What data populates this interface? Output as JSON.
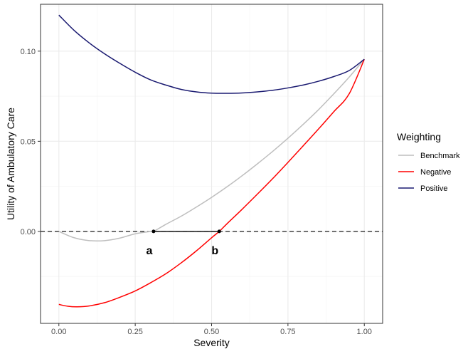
{
  "chart_data": {
    "type": "line",
    "title": "",
    "xlabel": "Severity",
    "ylabel": "Utility of Ambulatory Care",
    "xlim": [
      -0.06,
      1.06
    ],
    "ylim": [
      -0.051,
      0.126
    ],
    "xticks": [
      0.0,
      0.25,
      0.5,
      0.75,
      1.0
    ],
    "xtick_labels": [
      "0.00",
      "0.25",
      "0.50",
      "0.75",
      "1.00"
    ],
    "yticks": [
      0.0,
      0.05,
      0.1
    ],
    "ytick_labels": [
      "0.00",
      "0.05",
      "0.10"
    ],
    "grid": true,
    "legend": {
      "title": "Weighting",
      "position": "right",
      "entries": [
        {
          "name": "Benchmark",
          "color": "#bebebe"
        },
        {
          "name": "Negative",
          "color": "#ff0000"
        },
        {
          "name": "Positive",
          "color": "#191970"
        }
      ]
    },
    "series": [
      {
        "name": "Benchmark",
        "color": "#bebebe",
        "x": [
          0.0,
          0.05,
          0.1,
          0.15,
          0.2,
          0.25,
          0.3,
          0.31,
          0.35,
          0.4,
          0.45,
          0.5,
          0.55,
          0.6,
          0.65,
          0.7,
          0.75,
          0.8,
          0.85,
          0.9,
          0.95,
          1.0
        ],
        "y": [
          0.0,
          -0.0035,
          -0.0051,
          -0.0051,
          -0.0037,
          -0.0013,
          0.0,
          0.0,
          0.0039,
          0.0084,
          0.0135,
          0.0189,
          0.0247,
          0.0309,
          0.0375,
          0.0444,
          0.0517,
          0.0594,
          0.0675,
          0.0763,
          0.0855,
          0.0955
        ]
      },
      {
        "name": "Negative",
        "color": "#ff0000",
        "x": [
          0.0,
          0.03,
          0.06,
          0.1,
          0.15,
          0.2,
          0.25,
          0.3,
          0.35,
          0.4,
          0.45,
          0.5,
          0.525,
          0.55,
          0.6,
          0.65,
          0.7,
          0.75,
          0.8,
          0.85,
          0.9,
          0.95,
          1.0
        ],
        "y": [
          -0.0405,
          -0.0415,
          -0.0418,
          -0.0413,
          -0.0395,
          -0.0365,
          -0.033,
          -0.0285,
          -0.0235,
          -0.0175,
          -0.0108,
          -0.0035,
          0.0,
          0.0042,
          0.0123,
          0.0207,
          0.0293,
          0.0383,
          0.0475,
          0.0568,
          0.0664,
          0.0762,
          0.0955
        ]
      },
      {
        "name": "Positive",
        "color": "#191970",
        "x": [
          0.0,
          0.05,
          0.1,
          0.15,
          0.2,
          0.25,
          0.3,
          0.35,
          0.4,
          0.45,
          0.5,
          0.55,
          0.6,
          0.65,
          0.7,
          0.75,
          0.8,
          0.85,
          0.9,
          0.95,
          1.0
        ],
        "y": [
          0.12,
          0.1115,
          0.1045,
          0.0985,
          0.0932,
          0.0883,
          0.0841,
          0.0812,
          0.0788,
          0.0774,
          0.0767,
          0.0766,
          0.0768,
          0.0774,
          0.0783,
          0.0796,
          0.0812,
          0.0833,
          0.0859,
          0.0892,
          0.0955
        ]
      }
    ],
    "reference_line": {
      "y": 0.0,
      "style": "dashed"
    },
    "segment": {
      "x": [
        0.31,
        0.525
      ],
      "y": 0.0
    },
    "annotations": [
      {
        "label": "a",
        "x": 0.31,
        "y": 0.0
      },
      {
        "label": "b",
        "x": 0.525,
        "y": 0.0
      }
    ]
  }
}
